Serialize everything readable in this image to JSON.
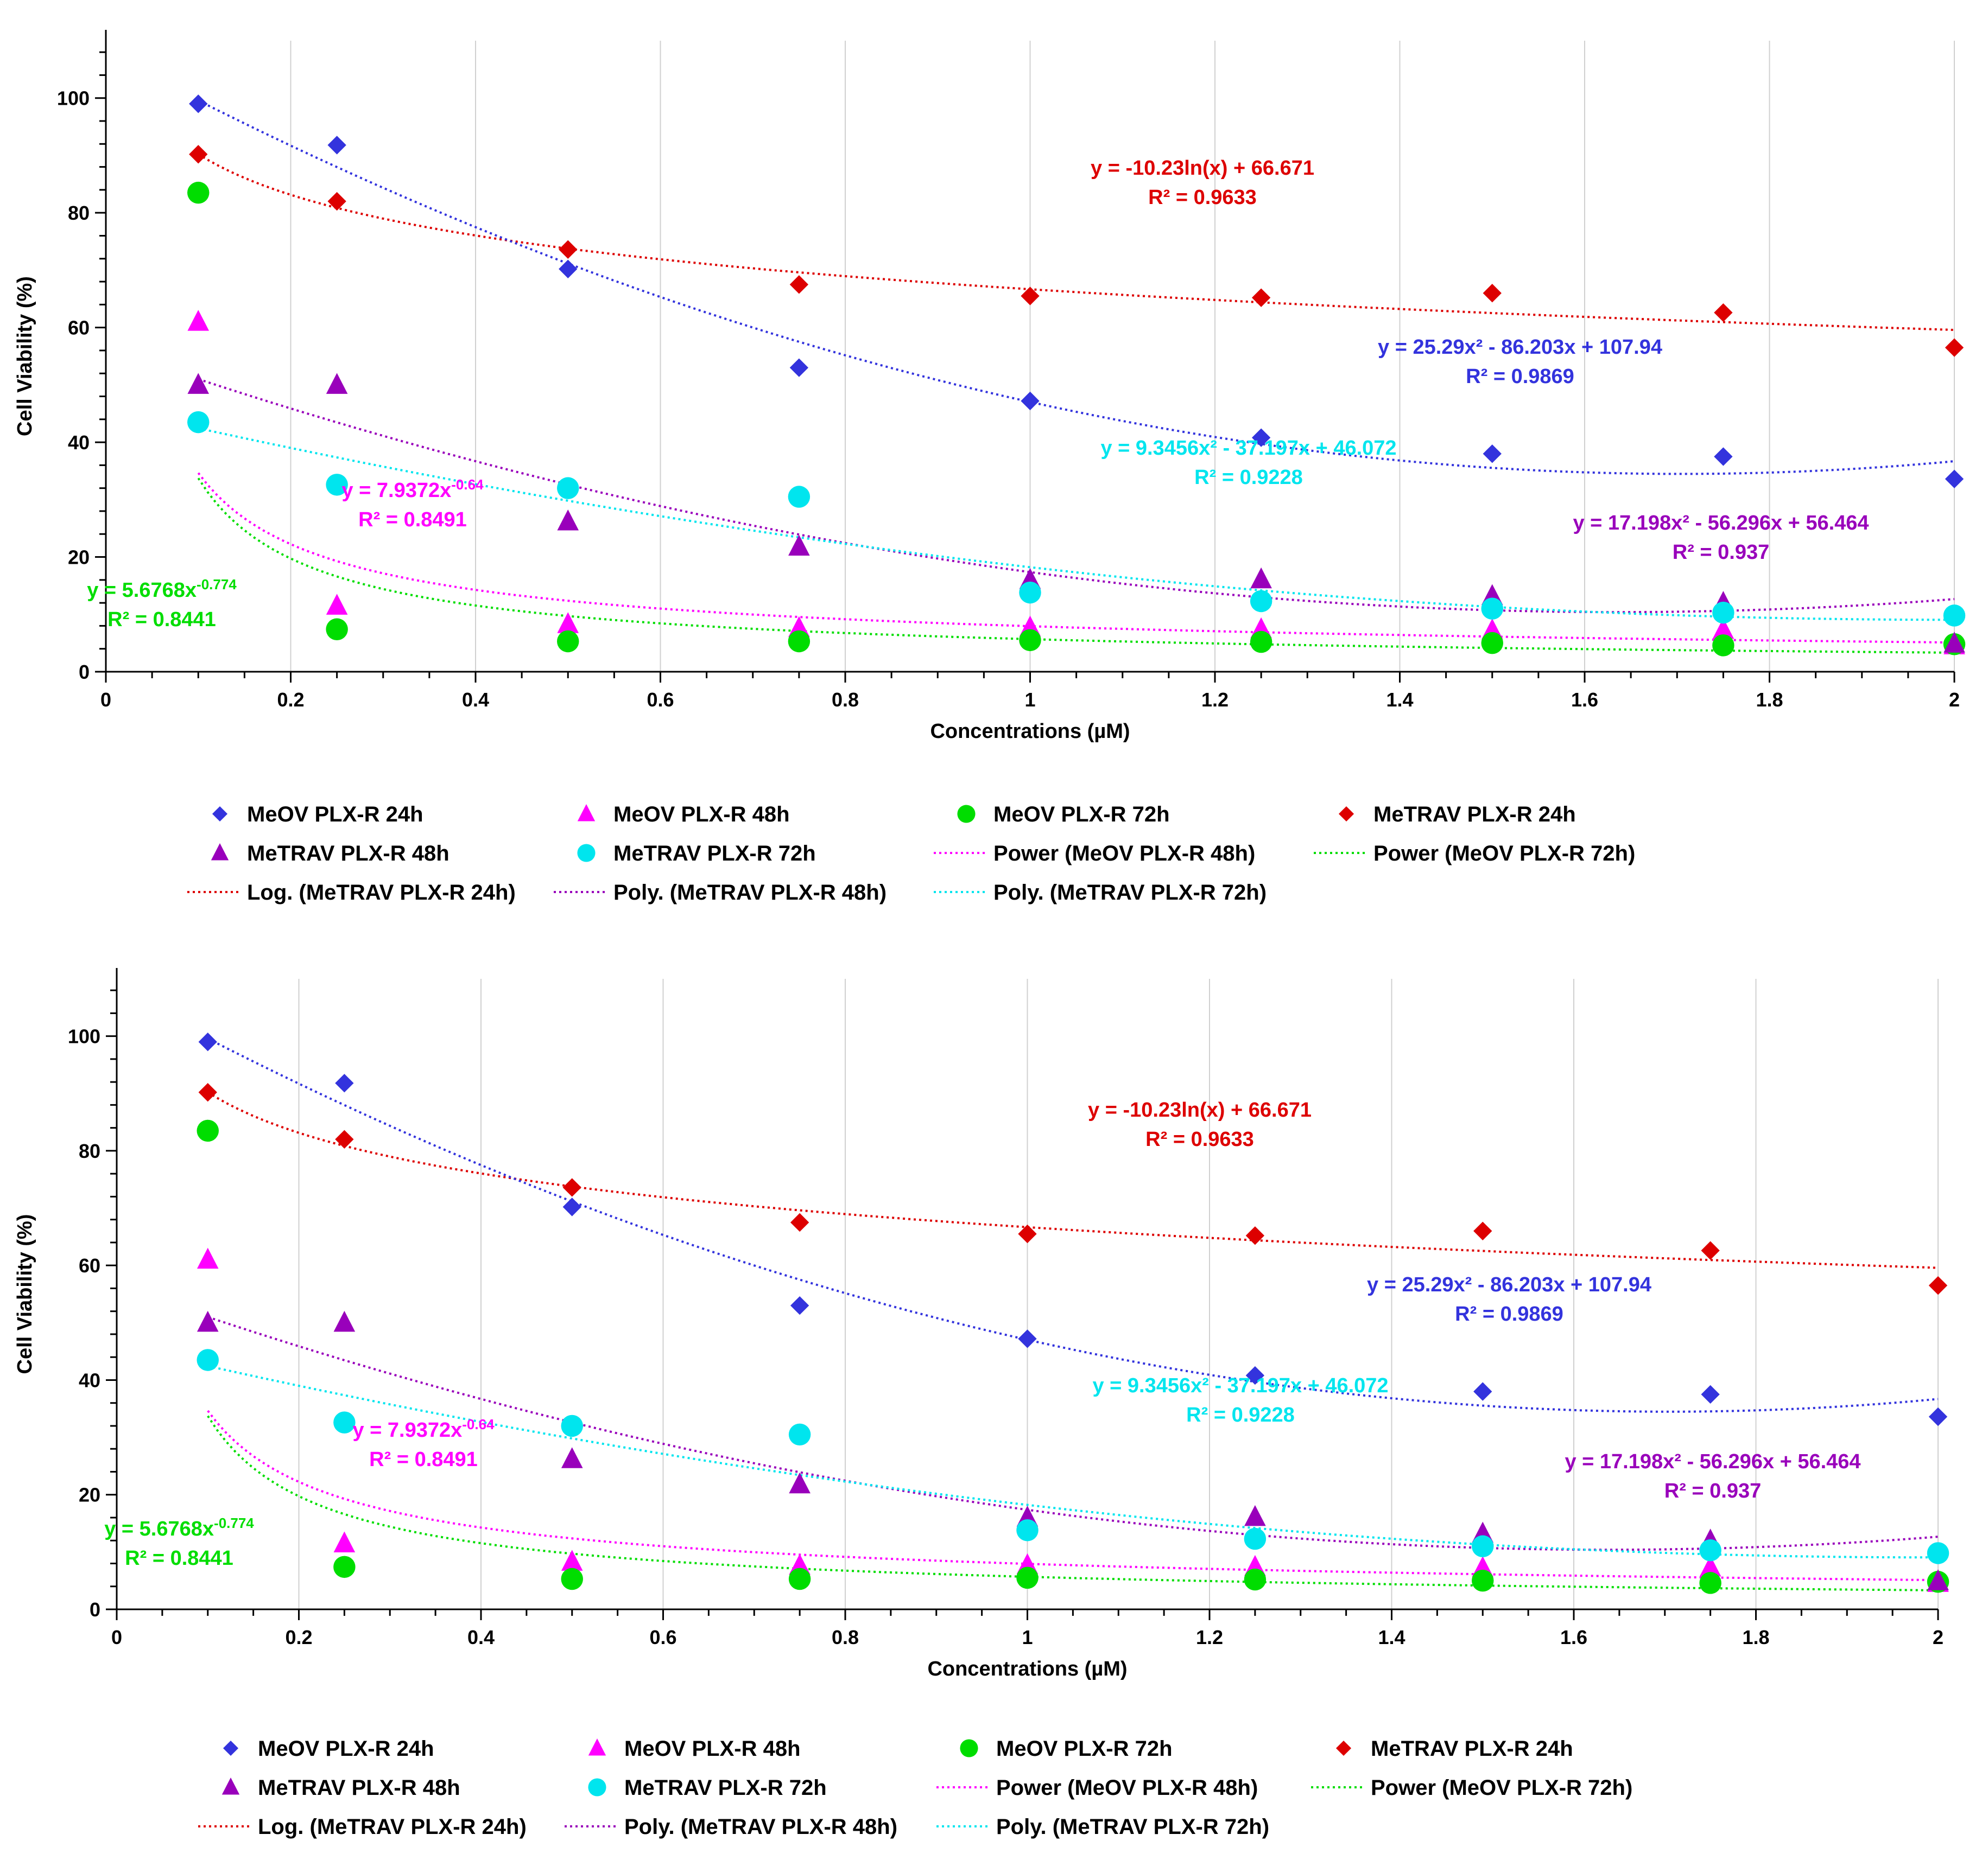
{
  "chart_data": [
    {
      "type": "scatter",
      "title": "",
      "xlabel": "Concentrations (µM)",
      "ylabel": "Cell Viability (%)",
      "xlim": [
        0,
        2
      ],
      "ylim": [
        0,
        110
      ],
      "x_ticks": [
        0,
        0.2,
        0.4,
        0.6,
        0.8,
        1,
        1.2,
        1.4,
        1.6,
        1.8,
        2
      ],
      "x_tick_labels": [
        "0",
        "0.2",
        "0.4",
        "0.6",
        "0.8",
        "1",
        "1.2",
        "1.4",
        "1.6",
        "1.8",
        "2"
      ],
      "y_ticks": [
        0,
        20,
        40,
        60,
        80,
        100
      ],
      "y_tick_labels": [
        "0",
        "20",
        "40",
        "60",
        "80",
        "100"
      ],
      "grid": true,
      "legend_position": "bottom",
      "series": [
        {
          "name": "MeOV PLX-R 24h",
          "marker": "diamond",
          "color": "#3333dd",
          "x": [
            0.1,
            0.25,
            0.5,
            0.75,
            1,
            1.25,
            1.5,
            1.75,
            2
          ],
          "values": [
            99,
            91.8,
            70.2,
            53,
            47.2,
            40.8,
            38,
            37.5,
            33.6
          ]
        },
        {
          "name": "MeOV PLX-R 48h",
          "marker": "triangle",
          "color": "#ff00ff",
          "x": [
            0.1,
            0.25,
            0.5,
            0.75,
            1,
            1.25,
            1.5,
            1.75,
            2
          ],
          "values": [
            61,
            11.5,
            8.3,
            7.6,
            7.7,
            7.4,
            7.2,
            7.3,
            4.6
          ]
        },
        {
          "name": "MeOV PLX-R 72h",
          "marker": "circle",
          "color": "#00dd00",
          "x": [
            0.1,
            0.25,
            0.5,
            0.75,
            1,
            1.25,
            1.5,
            1.75,
            2
          ],
          "values": [
            83.5,
            7.4,
            5.3,
            5.3,
            5.5,
            5.2,
            5,
            4.6,
            4.8
          ]
        },
        {
          "name": "MeTRAV PLX-R 24h",
          "marker": "diamond",
          "color": "#dd0000",
          "x": [
            0.1,
            0.25,
            0.5,
            0.75,
            1,
            1.25,
            1.5,
            1.75,
            2
          ],
          "values": [
            90.2,
            82,
            73.6,
            67.5,
            65.5,
            65.2,
            66,
            62.6,
            56.5
          ]
        },
        {
          "name": "MeTRAV PLX-R 48h",
          "marker": "triangle",
          "color": "#9900bb",
          "x": [
            0.1,
            0.25,
            0.5,
            0.75,
            1,
            1.25,
            1.5,
            1.75,
            2
          ],
          "values": [
            50,
            50,
            26.2,
            21.8,
            16,
            16.1,
            13.2,
            12,
            4.9
          ]
        },
        {
          "name": "MeTRAV PLX-R 72h",
          "marker": "circle",
          "color": "#00e5ee",
          "x": [
            0.1,
            0.25,
            0.5,
            0.75,
            1,
            1.25,
            1.5,
            1.75,
            2
          ],
          "values": [
            43.5,
            32.6,
            32,
            30.5,
            13.8,
            12.3,
            11,
            10.3,
            9.8
          ]
        }
      ],
      "trendlines": [
        {
          "name": "Power (MeOV PLX-R 48h)",
          "type": "power",
          "coef": [
            7.9372,
            -0.64
          ],
          "color": "#ff00ff",
          "equation": "y = 7.9372x",
          "exponent": "-0.64",
          "r2": "R² = 0.8491"
        },
        {
          "name": "Power (MeOV PLX-R 72h)",
          "type": "power",
          "coef": [
            5.6768,
            -0.774
          ],
          "color": "#00dd00",
          "equation": "y = 5.6768x",
          "exponent": "-0.774",
          "r2": "R² = 0.8441"
        },
        {
          "name": "Log. (MeTRAV PLX-R 24h)",
          "type": "log",
          "coef": [
            -10.23,
            66.671
          ],
          "color": "#dd0000",
          "equation": "y = -10.23ln(x) + 66.671",
          "r2": "R² = 0.9633"
        },
        {
          "name": "Poly. (MeTRAV PLX-R 48h)",
          "type": "poly",
          "coef": [
            17.198,
            -56.296,
            56.464
          ],
          "color": "#9900bb",
          "equation": "y = 17.198x² - 56.296x + 56.464",
          "r2": "R² = 0.937"
        },
        {
          "name": "Poly. (MeTRAV PLX-R 72h)",
          "type": "poly",
          "coef": [
            9.3456,
            -37.197,
            46.072
          ],
          "color": "#00e5ee",
          "equation": "y = 9.3456x² - 37.197x + 46.072",
          "r2": "R² = 0.9228"
        },
        {
          "name": "",
          "type": "poly",
          "coef": [
            25.29,
            -86.203,
            107.94
          ],
          "color": "#3333dd",
          "equation": "y = 25.29x² - 86.203x + 107.94",
          "r2": "R² = 0.9869"
        }
      ],
      "legend": [
        "MeOV PLX-R 24h",
        "MeOV PLX-R 48h",
        "MeOV PLX-R 72h",
        "MeTRAV PLX-R 24h",
        "MeTRAV PLX-R 48h",
        "MeTRAV PLX-R 72h",
        "Power (MeOV PLX-R 48h)",
        "Power (MeOV PLX-R 72h)",
        "Log. (MeTRAV PLX-R 24h)",
        "Poly. (MeTRAV PLX-R 48h)",
        "Poly. (MeTRAV PLX-R 72h)"
      ]
    },
    {
      "type": "scatter",
      "title": "",
      "xlabel": "Concentrations (µM)",
      "ylabel": "Cell Viability (%)",
      "xlim": [
        0,
        2
      ],
      "ylim": [
        0,
        110
      ],
      "x_ticks": [
        0,
        0.2,
        0.4,
        0.6,
        0.8,
        1,
        1.2,
        1.4,
        1.6,
        1.8,
        2
      ],
      "x_tick_labels": [
        "0",
        "0.2",
        "0.4",
        "0.6",
        "0.8",
        "1",
        "1.2",
        "1.4",
        "1.6",
        "1.8",
        "2"
      ],
      "y_ticks": [
        0,
        20,
        40,
        60,
        80,
        100
      ],
      "y_tick_labels": [
        "0",
        "20",
        "40",
        "60",
        "80",
        "100"
      ],
      "grid": true,
      "legend_position": "bottom",
      "series": [
        {
          "name": "MeOV PLX-R 24h",
          "marker": "diamond",
          "color": "#3333dd",
          "x": [
            0.1,
            0.25,
            0.5,
            0.75,
            1,
            1.25,
            1.5,
            1.75,
            2
          ],
          "values": [
            99,
            91.8,
            70.2,
            53,
            47.2,
            40.8,
            38,
            37.5,
            33.6
          ]
        },
        {
          "name": "MeOV PLX-R 48h",
          "marker": "triangle",
          "color": "#ff00ff",
          "x": [
            0.1,
            0.25,
            0.5,
            0.75,
            1,
            1.25,
            1.5,
            1.75,
            2
          ],
          "values": [
            61,
            11.5,
            8.3,
            7.6,
            7.7,
            7.4,
            7.2,
            7.3,
            4.6
          ]
        },
        {
          "name": "MeOV PLX-R 72h",
          "marker": "circle",
          "color": "#00dd00",
          "x": [
            0.1,
            0.25,
            0.5,
            0.75,
            1,
            1.25,
            1.5,
            1.75,
            2
          ],
          "values": [
            83.5,
            7.4,
            5.3,
            5.3,
            5.5,
            5.2,
            5,
            4.6,
            4.8
          ]
        },
        {
          "name": "MeTRAV PLX-R 24h",
          "marker": "diamond",
          "color": "#dd0000",
          "x": [
            0.1,
            0.25,
            0.5,
            0.75,
            1,
            1.25,
            1.5,
            1.75,
            2
          ],
          "values": [
            90.2,
            82,
            73.6,
            67.5,
            65.5,
            65.2,
            66,
            62.6,
            56.5
          ]
        },
        {
          "name": "MeTRAV PLX-R 48h",
          "marker": "triangle",
          "color": "#9900bb",
          "x": [
            0.1,
            0.25,
            0.5,
            0.75,
            1,
            1.25,
            1.5,
            1.75,
            2
          ],
          "values": [
            50,
            50,
            26.2,
            21.8,
            16,
            16.1,
            13.2,
            12,
            4.9
          ]
        },
        {
          "name": "MeTRAV PLX-R 72h",
          "marker": "circle",
          "color": "#00e5ee",
          "x": [
            0.1,
            0.25,
            0.5,
            0.75,
            1,
            1.25,
            1.5,
            1.75,
            2
          ],
          "values": [
            43.5,
            32.6,
            32,
            30.5,
            13.8,
            12.3,
            11,
            10.3,
            9.8
          ]
        }
      ],
      "trendlines": [
        {
          "name": "Power (MeOV PLX-R 48h)",
          "type": "power",
          "coef": [
            7.9372,
            -0.64
          ],
          "color": "#ff00ff",
          "equation": "y = 7.9372x",
          "exponent": "-0.64",
          "r2": "R² = 0.8491"
        },
        {
          "name": "Power (MeOV PLX-R 72h)",
          "type": "power",
          "coef": [
            5.6768,
            -0.774
          ],
          "color": "#00dd00",
          "equation": "y = 5.6768x",
          "exponent": "-0.774",
          "r2": "R² = 0.8441"
        },
        {
          "name": "Log. (MeTRAV PLX-R 24h)",
          "type": "log",
          "coef": [
            -10.23,
            66.671
          ],
          "color": "#dd0000",
          "equation": "y = -10.23ln(x) + 66.671",
          "r2": "R² = 0.9633"
        },
        {
          "name": "Poly. (MeTRAV PLX-R 48h)",
          "type": "poly",
          "coef": [
            17.198,
            -56.296,
            56.464
          ],
          "color": "#9900bb",
          "equation": "y = 17.198x² - 56.296x + 56.464",
          "r2": "R² = 0.937"
        },
        {
          "name": "Poly. (MeTRAV PLX-R 72h)",
          "type": "poly",
          "coef": [
            9.3456,
            -37.197,
            46.072
          ],
          "color": "#00e5ee",
          "equation": "y = 9.3456x² - 37.197x + 46.072",
          "r2": "R² = 0.9228"
        },
        {
          "name": "",
          "type": "poly",
          "coef": [
            25.29,
            -86.203,
            107.94
          ],
          "color": "#3333dd",
          "equation": "y = 25.29x² - 86.203x + 107.94",
          "r2": "R² = 0.9869"
        }
      ],
      "legend": [
        "MeOV PLX-R 24h",
        "MeOV PLX-R 48h",
        "MeOV PLX-R 72h",
        "MeTRAV PLX-R 24h",
        "MeTRAV PLX-R 48h",
        "MeTRAV PLX-R 72h",
        "Power (MeOV PLX-R 48h)",
        "Power (MeOV PLX-R 72h)",
        "Log. (MeTRAV PLX-R 24h)",
        "Poly. (MeTRAV PLX-R 48h)",
        "Poly. (MeTRAV PLX-R 72h)"
      ]
    }
  ]
}
